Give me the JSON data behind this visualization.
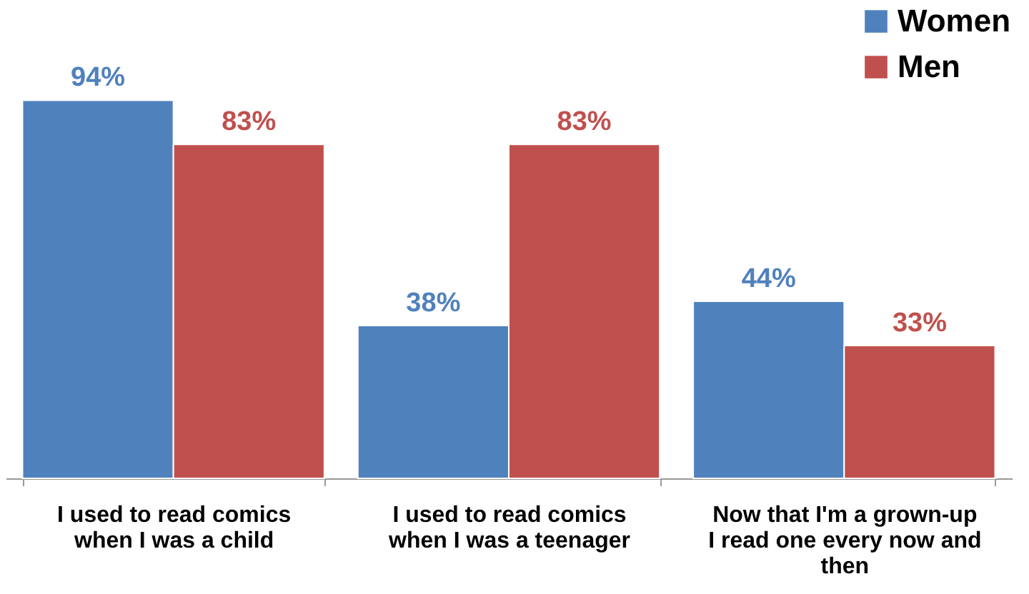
{
  "chart_data": {
    "type": "bar",
    "categories": [
      "I used to read comics when I was a child",
      "I used to read comics when I was a teenager",
      "Now that I'm a grown-up I read one every now and then"
    ],
    "series": [
      {
        "name": "Women",
        "color": "#4f81bd",
        "values": [
          94,
          38,
          44
        ],
        "value_labels": [
          "94%",
          "38%",
          "44%"
        ]
      },
      {
        "name": "Men",
        "color": "#c0504d",
        "values": [
          83,
          83,
          33
        ],
        "value_labels": [
          "83%",
          "83%",
          "33%"
        ]
      }
    ],
    "legend": "top right",
    "grid": false
  }
}
